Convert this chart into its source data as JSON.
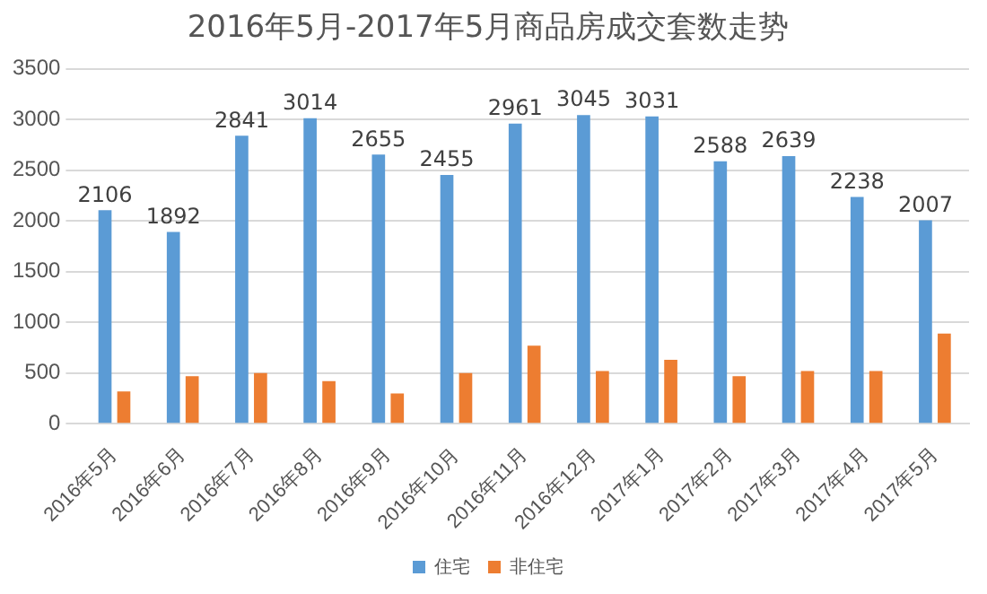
{
  "chart_data": {
    "type": "bar",
    "title": "2016年5月-2017年5月商品房成交套数走势",
    "categories": [
      "2016年5月",
      "2016年6月",
      "2016年7月",
      "2016年8月",
      "2016年9月",
      "2016年10月",
      "2016年11月",
      "2016年12月",
      "2017年1月",
      "2017年2月",
      "2017年3月",
      "2017年4月",
      "2017年5月"
    ],
    "series": [
      {
        "name": "住宅",
        "color": "#5b9bd5",
        "values": [
          2106,
          1892,
          2841,
          3014,
          2655,
          2455,
          2961,
          3045,
          3031,
          2588,
          2639,
          2238,
          2007
        ],
        "value_labels": [
          "2106",
          "1892",
          "2841",
          "3014",
          "2655",
          "2455",
          "2961",
          "3045",
          "3031",
          "2588",
          "2639",
          "2238",
          "2007"
        ]
      },
      {
        "name": "非住宅",
        "color": "#ed7d31",
        "values": [
          320,
          470,
          500,
          420,
          300,
          500,
          770,
          520,
          630,
          470,
          520,
          520,
          890
        ]
      }
    ],
    "ylim": [
      0,
      3500
    ],
    "yticks": [
      0,
      500,
      1000,
      1500,
      2000,
      2500,
      3000,
      3500
    ],
    "grid": "y",
    "legend": "bottom"
  }
}
